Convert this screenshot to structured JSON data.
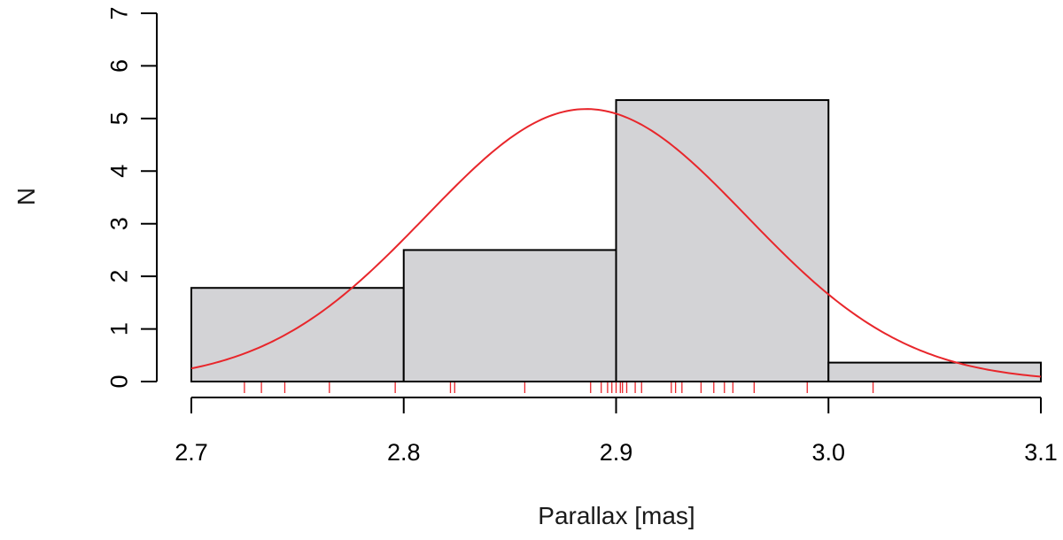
{
  "chart_data": {
    "type": "bar",
    "title": "",
    "xlabel": "Parallax [mas]",
    "ylabel": "N",
    "xlim": [
      2.7,
      3.1
    ],
    "ylim": [
      0,
      7
    ],
    "x_ticks": [
      "2.7",
      "2.8",
      "2.9",
      "3.0",
      "3.1"
    ],
    "y_ticks": [
      "0",
      "1",
      "2",
      "3",
      "4",
      "5",
      "6",
      "7"
    ],
    "bins": [
      {
        "from": 2.7,
        "to": 2.8,
        "value": 1.78
      },
      {
        "from": 2.8,
        "to": 2.9,
        "value": 2.5
      },
      {
        "from": 2.9,
        "to": 3.0,
        "value": 5.35
      },
      {
        "from": 3.0,
        "to": 3.1,
        "value": 0.36
      }
    ],
    "bar_color": "#d3d3d6",
    "bar_edge_color": "#000000",
    "fit_curve": {
      "type": "gaussian",
      "mean": 2.886,
      "sigma": 0.0755,
      "peak": 5.18,
      "color": "#e8262b"
    },
    "rug": {
      "color": "#e8262b",
      "values": [
        2.725,
        2.733,
        2.744,
        2.765,
        2.796,
        2.822,
        2.824,
        2.857,
        2.888,
        2.893,
        2.896,
        2.898,
        2.9,
        2.902,
        2.903,
        2.905,
        2.909,
        2.912,
        2.926,
        2.928,
        2.931,
        2.94,
        2.946,
        2.951,
        2.955,
        2.965,
        2.99,
        3.021
      ]
    },
    "grid": false,
    "legend": "none"
  }
}
